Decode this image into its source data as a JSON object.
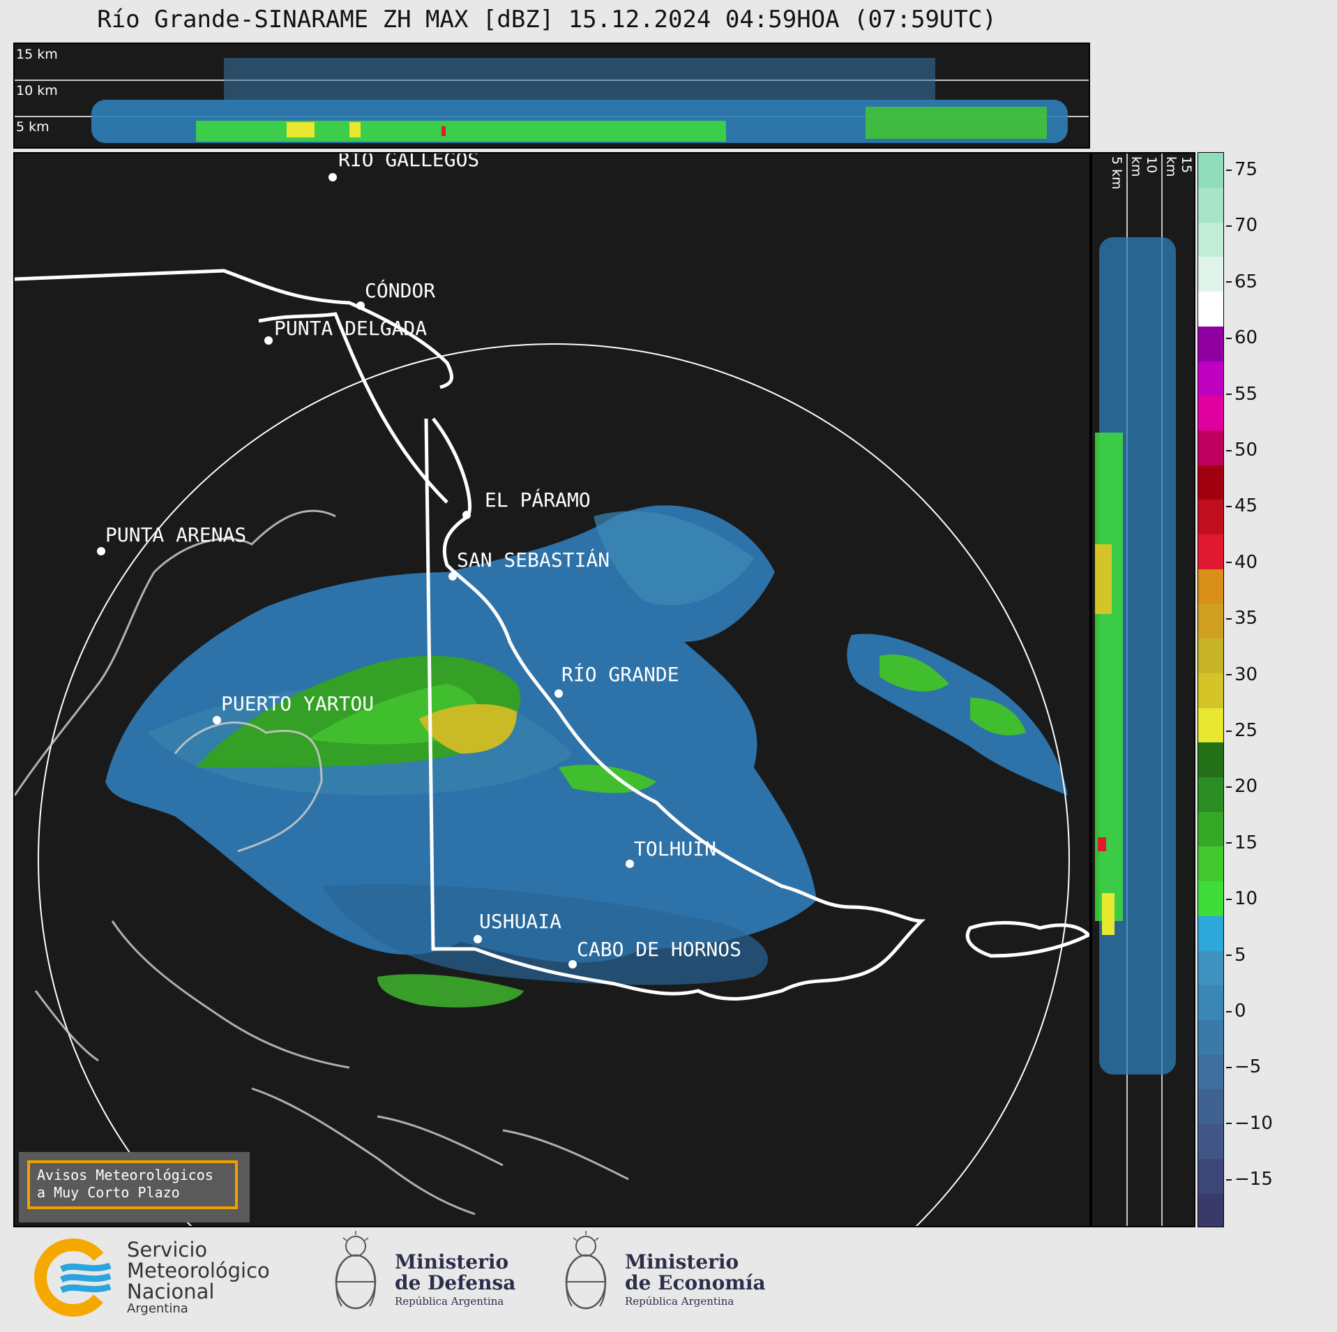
{
  "title": "Río Grande-SINARAME ZH MAX [dBZ] 15.12.2024 04:59HOA (07:59UTC)",
  "top_panel": {
    "height_labels": [
      "15 km",
      "10 km",
      "5 km"
    ]
  },
  "side_panel": {
    "height_labels": [
      "5 km",
      "10 km",
      "15 km"
    ]
  },
  "colorbar": {
    "unit": "dBZ",
    "ticks": [
      "75",
      "70",
      "65",
      "60",
      "55",
      "50",
      "45",
      "40",
      "35",
      "30",
      "25",
      "20",
      "15",
      "10",
      "5",
      "0",
      "−5",
      "−10",
      "−15"
    ],
    "colors": [
      "#3a3a6a",
      "#3e4878",
      "#425686",
      "#3f6290",
      "#3d6e9c",
      "#3b7aa8",
      "#3a86b4",
      "#3f92c0",
      "#2ea8d8",
      "#3fdd3a",
      "#44c830",
      "#36a828",
      "#2a8c22",
      "#237018",
      "#e8e830",
      "#d4c428",
      "#c8b428",
      "#d0a020",
      "#d89018",
      "#e01830",
      "#c01020",
      "#a00010",
      "#c00060",
      "#e000a0",
      "#c000c0",
      "#9000a0",
      "#ffffff",
      "#e0f4ec",
      "#c0ecd8",
      "#a8e4c8",
      "#90dcbc"
    ]
  },
  "cities": [
    {
      "name": "RÍO GALLEGOS"
    },
    {
      "name": "CÓNDOR"
    },
    {
      "name": "PUNTA DELGADA"
    },
    {
      "name": "PUNTA ARENAS"
    },
    {
      "name": "EL PÁRAMO"
    },
    {
      "name": "SAN SEBASTIÁN"
    },
    {
      "name": "RÍO GRANDE"
    },
    {
      "name": "PUERTO YARTOU"
    },
    {
      "name": "TOLHUIN"
    },
    {
      "name": "USHUAIA"
    },
    {
      "name": "CABO DE HORNOS"
    }
  ],
  "warning_box": {
    "line1": "Avisos Meteorológicos",
    "line2": "a Muy Corto Plazo"
  },
  "logos": {
    "smn": {
      "line1": "Servicio",
      "line2": "Meteorológico",
      "line3": "Nacional",
      "line4": "Argentina"
    },
    "defensa": {
      "line1": "Ministerio",
      "line2": "de Defensa",
      "line3": "República Argentina"
    },
    "economia": {
      "line1": "Ministerio",
      "line2": "de Economía",
      "line3": "República Argentina"
    }
  }
}
